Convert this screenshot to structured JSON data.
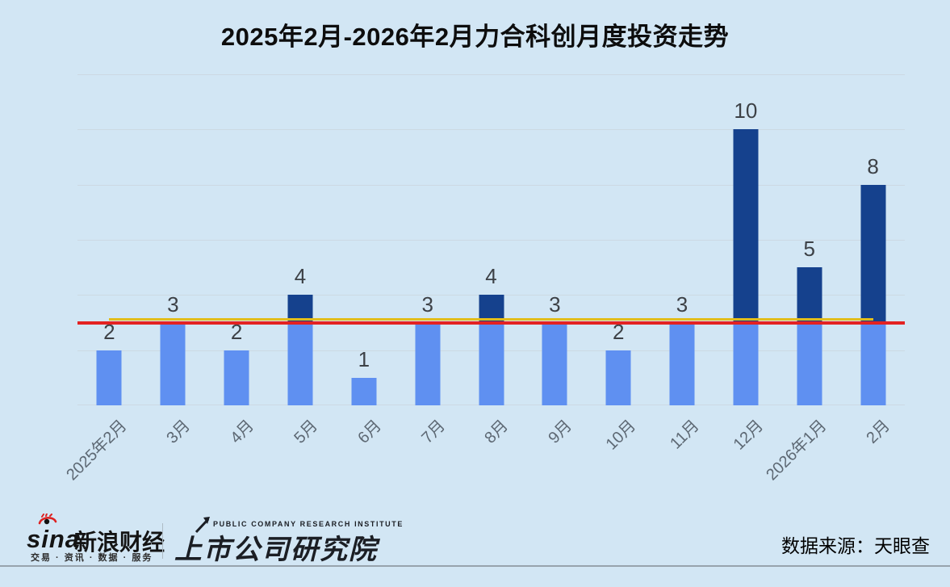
{
  "title": "2025年2月-2026年2月力合科创月度投资走势",
  "chart_data": {
    "type": "bar",
    "title": "2025年2月-2026年2月力合科创月度投资走势",
    "categories": [
      "2025年2月",
      "3月",
      "4月",
      "5月",
      "6月",
      "7月",
      "8月",
      "9月",
      "10月",
      "11月",
      "12月",
      "2026年1月",
      "2月"
    ],
    "values": [
      2,
      3,
      2,
      4,
      1,
      3,
      4,
      3,
      2,
      3,
      10,
      5,
      8
    ],
    "ylim": [
      0,
      12
    ],
    "grid_step": 2,
    "grid": true,
    "legend_position": "none",
    "y_axis_labels": "none",
    "bar_colors": {
      "below_threshold": "#5f90f1",
      "above_threshold": "#15418d",
      "threshold": 3.05
    },
    "reference_lines": [
      {
        "name": "yellow-reference-line",
        "value": 3.12,
        "color": "#e2bd1b",
        "thickness": 3,
        "span": "bar-centers"
      },
      {
        "name": "red-reference-line",
        "value": 3.0,
        "color": "#e32222",
        "thickness": 4,
        "span": "full-width"
      }
    ]
  },
  "footer": {
    "sina": {
      "wordmark": "sina",
      "brand": "新浪财经",
      "tagline": "交易 · 资讯 · 数据 · 服务"
    },
    "institute": {
      "name_cn": "上市公司研究院",
      "name_en": "PUBLIC COMPANY RESEARCH INSTITUTE"
    },
    "source_label": "数据来源：天眼查"
  },
  "colors": {
    "background": "#d2e6f4",
    "grid_line": "#ccd9e3",
    "value_label": "#3d4146",
    "axis_label": "#5d6873",
    "footer_rule": "#98a4ad"
  }
}
